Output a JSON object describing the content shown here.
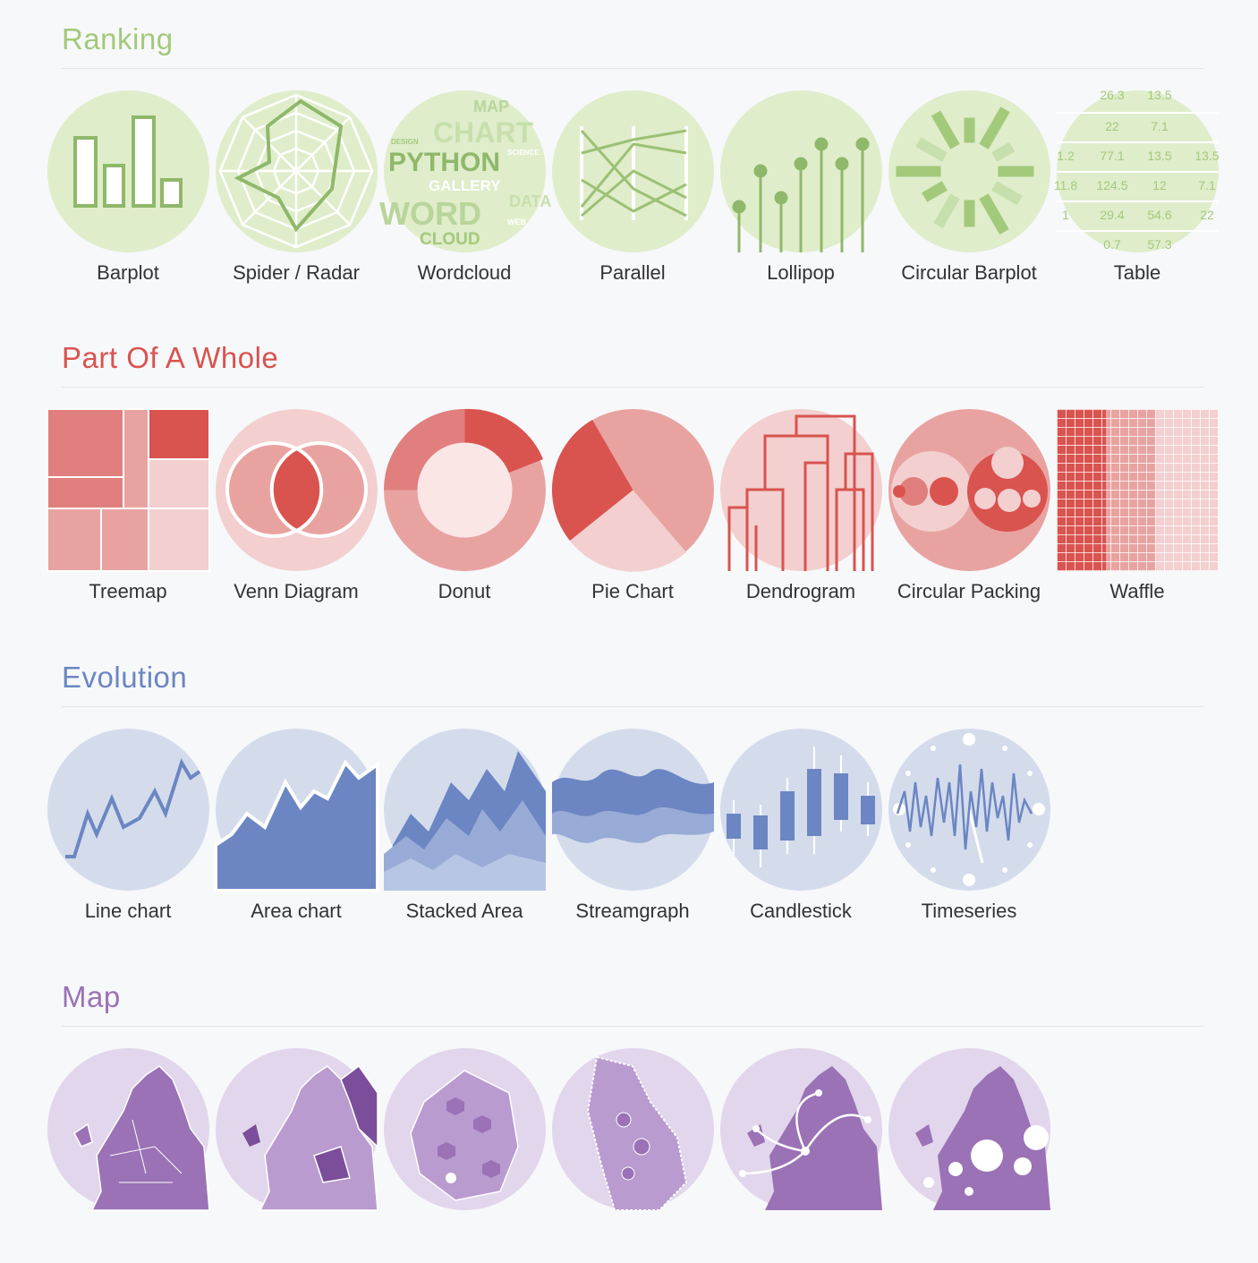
{
  "sections": [
    {
      "title": "Ranking",
      "color": "#a3c97a",
      "items": [
        {
          "label": "Barplot",
          "icon": "barplot-icon"
        },
        {
          "label": "Spider / Radar",
          "icon": "spider-radar-icon"
        },
        {
          "label": "Wordcloud",
          "icon": "wordcloud-icon"
        },
        {
          "label": "Parallel",
          "icon": "parallel-icon"
        },
        {
          "label": "Lollipop",
          "icon": "lollipop-icon"
        },
        {
          "label": "Circular Barplot",
          "icon": "circular-barplot-icon"
        },
        {
          "label": "Table",
          "icon": "table-icon"
        }
      ]
    },
    {
      "title": "Part Of A Whole",
      "color": "#d9534f",
      "items": [
        {
          "label": "Treemap",
          "icon": "treemap-icon"
        },
        {
          "label": "Venn Diagram",
          "icon": "venn-diagram-icon"
        },
        {
          "label": "Donut",
          "icon": "donut-icon"
        },
        {
          "label": "Pie Chart",
          "icon": "pie-chart-icon"
        },
        {
          "label": "Dendrogram",
          "icon": "dendrogram-icon"
        },
        {
          "label": "Circular Packing",
          "icon": "circular-packing-icon"
        },
        {
          "label": "Waffle",
          "icon": "waffle-icon"
        }
      ]
    },
    {
      "title": "Evolution",
      "color": "#6b86c2",
      "items": [
        {
          "label": "Line chart",
          "icon": "line-chart-icon"
        },
        {
          "label": "Area chart",
          "icon": "area-chart-icon"
        },
        {
          "label": "Stacked Area",
          "icon": "stacked-area-icon"
        },
        {
          "label": "Streamgraph",
          "icon": "streamgraph-icon"
        },
        {
          "label": "Candlestick",
          "icon": "candlestick-icon"
        },
        {
          "label": "Timeseries",
          "icon": "timeseries-icon"
        }
      ]
    },
    {
      "title": "Map",
      "color": "#9a72b5",
      "items": [
        {
          "label": "",
          "icon": "map-icon"
        },
        {
          "label": "",
          "icon": "choropleth-map-icon"
        },
        {
          "label": "",
          "icon": "hexbin-map-icon"
        },
        {
          "label": "",
          "icon": "cartogram-map-icon"
        },
        {
          "label": "",
          "icon": "connection-map-icon"
        },
        {
          "label": "",
          "icon": "bubble-map-icon"
        }
      ]
    }
  ],
  "wordcloud_words": [
    "MAP",
    "CHART",
    "PYTHON",
    "GALLERY",
    "WORD",
    "CLOUD",
    "DESIGN",
    "SCIENCE",
    "DATA",
    "WEB"
  ],
  "table_values": [
    "26.3",
    "13.5",
    "22",
    "7.1",
    "1.2",
    "77.1",
    "13.5",
    "13.5",
    "11.8",
    "124.5",
    "12",
    "7.1",
    "1",
    "29.4",
    "54.6",
    "22",
    "0.7",
    "57.3"
  ]
}
